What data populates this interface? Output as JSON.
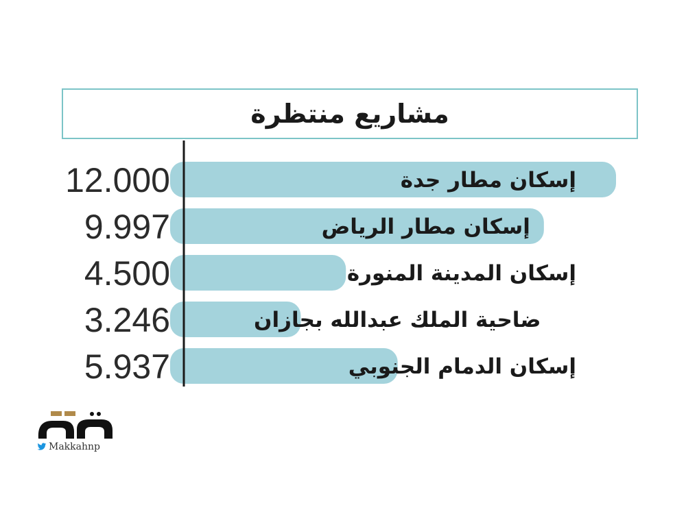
{
  "title": "مشاريع منتظرة",
  "colors": {
    "bar": "#a4d3dc",
    "axis": "#1a1a1a",
    "title_border": "#7cc4c7",
    "text": "#1a1a1a"
  },
  "chart_data": {
    "type": "bar",
    "orientation": "horizontal",
    "categories": [
      "إسكان مطار جدة",
      "إسكان مطار الرياض",
      "إسكان المدينة المنورة",
      "ضاحية الملك عبدالله بجازان",
      "إسكان الدمام الجنوبي"
    ],
    "values": [
      12000,
      9997,
      4500,
      3246,
      5937
    ],
    "value_labels": [
      "12.000",
      "9.997",
      "4.500",
      "3.246",
      "5.937"
    ],
    "title": "مشاريع منتظرة",
    "xlabel": "",
    "ylabel": "",
    "xlim": [
      0,
      12000
    ],
    "grid": false
  },
  "logo": {
    "mark_text": "مكة",
    "handle": "Makkahnp",
    "icon": "twitter-bird-icon"
  }
}
